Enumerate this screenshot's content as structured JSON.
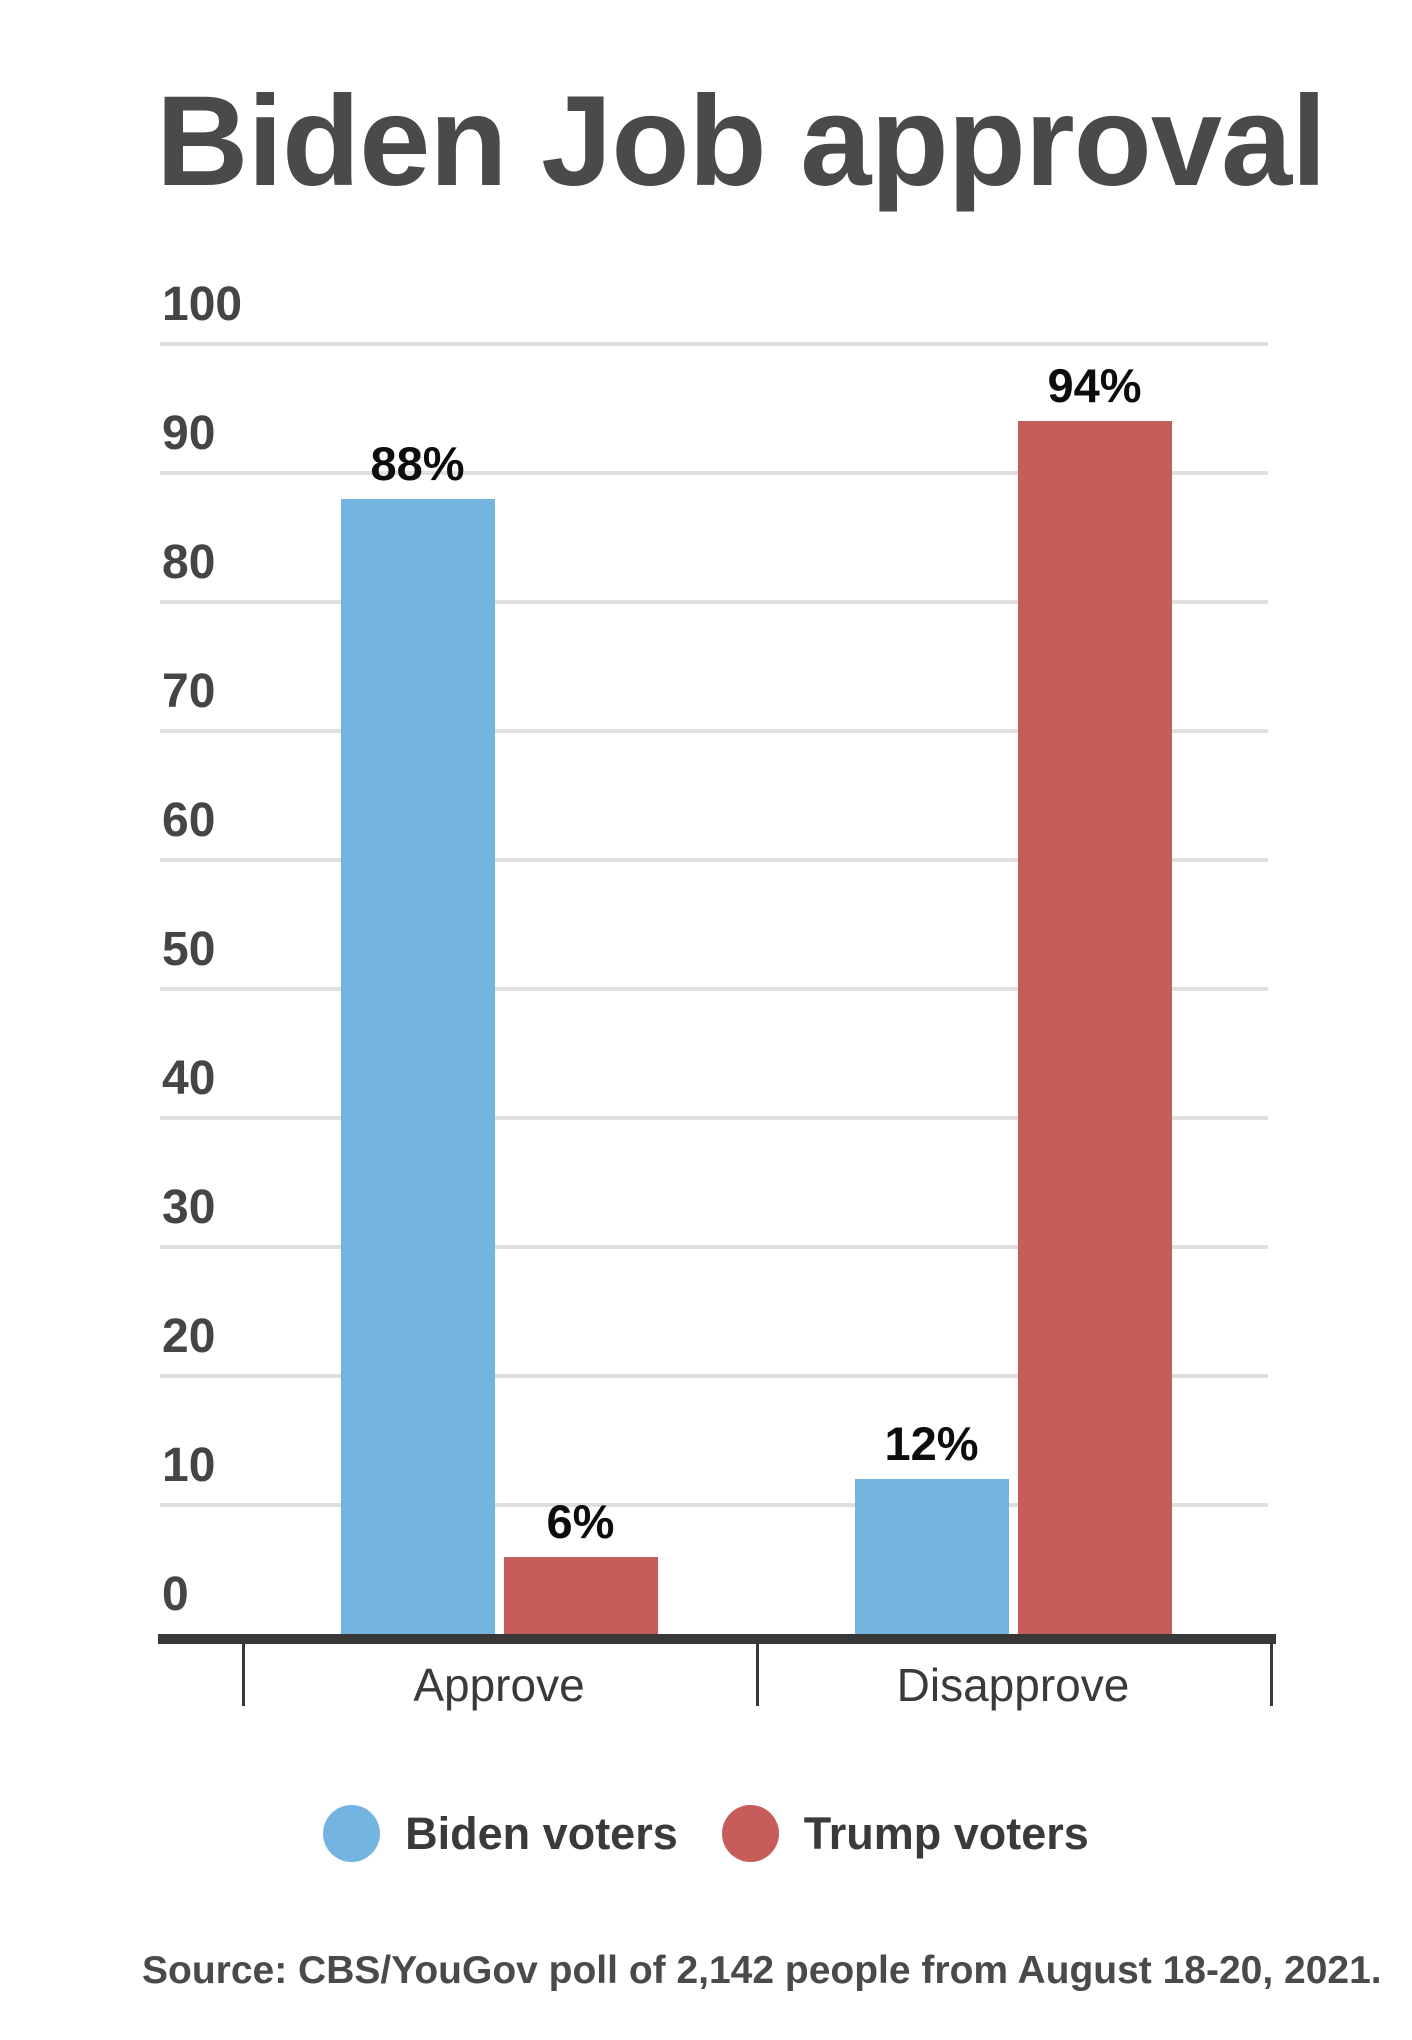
{
  "chart_data": {
    "type": "bar",
    "title": "Biden Job approval",
    "categories": [
      "Approve",
      "Disapprove"
    ],
    "series": [
      {
        "name": "Biden voters",
        "color": "#74b4e1",
        "values": [
          88,
          12
        ],
        "labels": [
          "88%",
          "12%"
        ]
      },
      {
        "name": "Trump voters",
        "color": "#c65d5b",
        "values": [
          6,
          94
        ],
        "labels": [
          "6%",
          "94%"
        ]
      }
    ],
    "xlabel": "",
    "ylabel": "",
    "ylim": [
      0,
      100
    ],
    "yticks": [
      0,
      10,
      20,
      30,
      40,
      50,
      60,
      70,
      80,
      90,
      100
    ],
    "grid": true,
    "legend_position": "bottom",
    "value_suffix": "%"
  },
  "colors": {
    "background": "#ffffff",
    "gridline": "#dfdfdf",
    "axis": "#383838",
    "title_text": "#4a4a4a",
    "tick_text": "#454545",
    "value_text": "#0d0d0d"
  },
  "source": {
    "text": "Source: CBS/YouGov poll of 2,142 people from August 18-20, 2021."
  }
}
